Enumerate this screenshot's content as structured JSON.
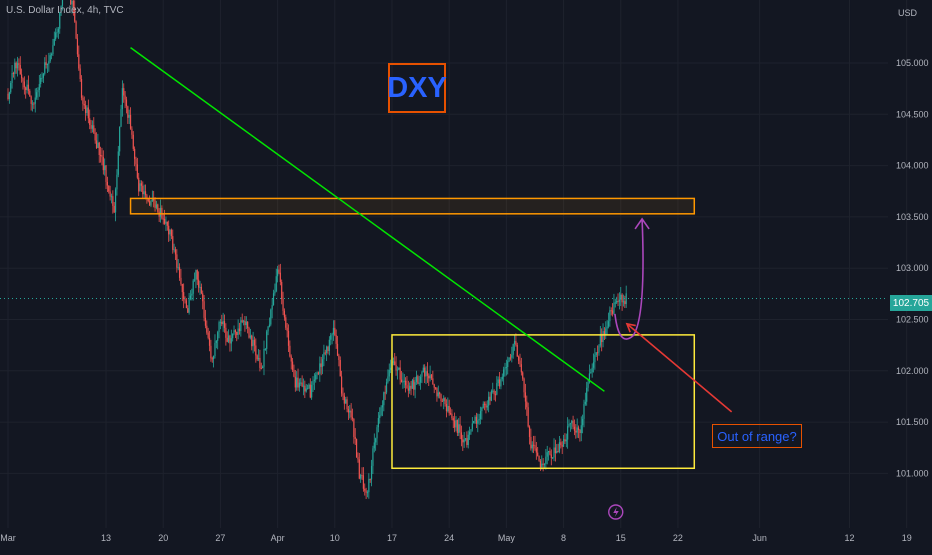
{
  "header": {
    "title": "U.S. Dollar Index, 4h, TVC"
  },
  "annotations": {
    "symbol_box": "DXY",
    "callout": "Out of range?"
  },
  "price_axis": {
    "unit": "USD",
    "current_price": "102.705",
    "current_price_value": 102.705
  },
  "colors": {
    "background": "#131722",
    "up": "#26a69a",
    "down": "#ef5350",
    "trendline": "#00e600",
    "resistance_zone": "#ff9800",
    "range_box": "#ffeb3b",
    "projection": "#ab47bc",
    "callout_arrow": "#e53935",
    "label_text": "#2962ff",
    "label_border": "#e65100"
  },
  "chart_data": {
    "type": "candlestick",
    "title": "U.S. Dollar Index, 4h, TVC",
    "symbol": "DXY",
    "xlabel": "",
    "ylabel": "",
    "ylim": [
      100.6,
      105.55
    ],
    "y_ticks": [
      "105.000",
      "104.500",
      "104.000",
      "103.500",
      "103.000",
      "102.500",
      "102.000",
      "101.500",
      "101.000"
    ],
    "y_tick_values": [
      105.0,
      104.5,
      104.0,
      103.5,
      103.0,
      102.5,
      102.0,
      101.5,
      101.0
    ],
    "x_ticks": [
      "Mar",
      "13",
      "20",
      "27",
      "Apr",
      "10",
      "17",
      "24",
      "May",
      "8",
      "15",
      "22",
      "Jun",
      "12",
      "19"
    ],
    "x_tick_dates": [
      "2023-03-01",
      "2023-03-13",
      "2023-03-20",
      "2023-03-27",
      "2023-04-03",
      "2023-04-10",
      "2023-04-17",
      "2023-04-24",
      "2023-05-01",
      "2023-05-08",
      "2023-05-15",
      "2023-05-22",
      "2023-06-01",
      "2023-06-12",
      "2023-06-19"
    ],
    "grid": true,
    "path": [
      [
        "2023-03-01",
        104.7
      ],
      [
        "2023-03-02",
        105.0
      ],
      [
        "2023-03-04",
        104.6
      ],
      [
        "2023-03-07",
        105.3
      ],
      [
        "2023-03-08",
        105.8
      ],
      [
        "2023-03-09",
        105.5
      ],
      [
        "2023-03-10",
        104.7
      ],
      [
        "2023-03-13",
        103.9
      ],
      [
        "2023-03-14",
        103.6
      ],
      [
        "2023-03-15",
        104.7
      ],
      [
        "2023-03-16",
        104.4
      ],
      [
        "2023-03-17",
        103.8
      ],
      [
        "2023-03-20",
        103.5
      ],
      [
        "2023-03-21",
        103.3
      ],
      [
        "2023-03-22",
        102.9
      ],
      [
        "2023-03-23",
        102.6
      ],
      [
        "2023-03-24",
        103.0
      ],
      [
        "2023-03-26",
        102.1
      ],
      [
        "2023-03-27",
        102.5
      ],
      [
        "2023-03-28",
        102.3
      ],
      [
        "2023-03-30",
        102.5
      ],
      [
        "2023-04-01",
        102.0
      ],
      [
        "2023-04-03",
        103.0
      ],
      [
        "2023-04-05",
        101.9
      ],
      [
        "2023-04-07",
        101.8
      ],
      [
        "2023-04-10",
        102.4
      ],
      [
        "2023-04-11",
        101.7
      ],
      [
        "2023-04-12",
        101.6
      ],
      [
        "2023-04-13",
        101.0
      ],
      [
        "2023-04-14",
        100.8
      ],
      [
        "2023-04-15",
        101.4
      ],
      [
        "2023-04-17",
        102.1
      ],
      [
        "2023-04-19",
        101.8
      ],
      [
        "2023-04-21",
        102.0
      ],
      [
        "2023-04-24",
        101.6
      ],
      [
        "2023-04-26",
        101.3
      ],
      [
        "2023-04-27",
        101.5
      ],
      [
        "2023-04-28",
        101.6
      ],
      [
        "2023-05-01",
        102.0
      ],
      [
        "2023-05-02",
        102.3
      ],
      [
        "2023-05-03",
        101.9
      ],
      [
        "2023-05-04",
        101.3
      ],
      [
        "2023-05-05",
        101.1
      ],
      [
        "2023-05-08",
        101.3
      ],
      [
        "2023-05-09",
        101.5
      ],
      [
        "2023-05-10",
        101.4
      ],
      [
        "2023-05-11",
        101.9
      ],
      [
        "2023-05-12",
        102.2
      ],
      [
        "2023-05-14",
        102.6
      ],
      [
        "2023-05-15",
        102.705
      ]
    ],
    "trendline": {
      "label": "",
      "from": [
        "2023-03-16",
        105.15
      ],
      "to": [
        "2023-05-13",
        101.8
      ]
    },
    "resistance_zone": {
      "x_from": "2023-03-16",
      "x_to": "2023-05-24",
      "y_from": 103.53,
      "y_to": 103.68
    },
    "range_box": {
      "x_from": "2023-04-17",
      "x_to": "2023-05-24",
      "y_from": 101.05,
      "y_to": 102.35
    },
    "projection": {
      "from": [
        "2023-05-16",
        102.35
      ],
      "to": [
        "2023-05-17",
        103.48
      ]
    },
    "callout_arrow": {
      "from": [
        "2023-06-01",
        101.6
      ],
      "to": [
        "2023-05-16",
        102.38
      ]
    },
    "event_marker": {
      "date": "2023-05-15",
      "icon": "lightning-icon"
    }
  }
}
